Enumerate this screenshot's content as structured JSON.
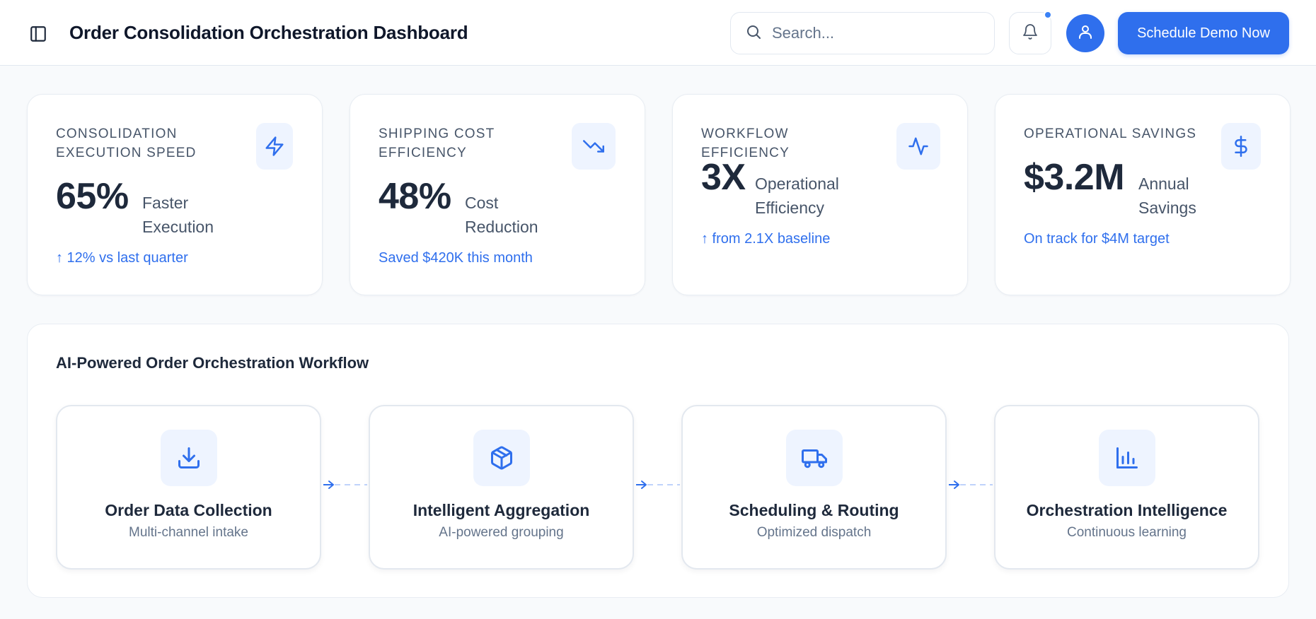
{
  "header": {
    "title": "Order Consolidation Orchestration Dashboard",
    "search_placeholder": "Search...",
    "demo_button": "Schedule Demo Now",
    "notification_dot": true
  },
  "kpis": [
    {
      "label": "Consolidation Execution Speed",
      "value": "65%",
      "caption": "Faster Execution",
      "trend": "↑ 12% vs last quarter",
      "icon": "lightning-icon"
    },
    {
      "label": "Shipping Cost Efficiency",
      "value": "48%",
      "caption": "Cost Reduction",
      "trend": "Saved $420K this month",
      "icon": "trending-down-icon"
    },
    {
      "label": "Workflow Efficiency",
      "value": "3X",
      "caption": "Operational Efficiency",
      "trend": "↑ from 2.1X baseline",
      "icon": "activity-icon"
    },
    {
      "label": "Operational Savings",
      "value": "$3.2M",
      "caption": "Annual Savings",
      "trend": "On track for $4M target",
      "icon": "dollar-icon"
    }
  ],
  "workflow": {
    "title": "AI-Powered Order Orchestration Workflow",
    "steps": [
      {
        "title": "Order Data Collection",
        "subtitle": "Multi-channel intake",
        "icon": "download-icon"
      },
      {
        "title": "Intelligent Aggregation",
        "subtitle": "AI-powered grouping",
        "icon": "package-icon"
      },
      {
        "title": "Scheduling & Routing",
        "subtitle": "Optimized dispatch",
        "icon": "truck-icon"
      },
      {
        "title": "Orchestration Intelligence",
        "subtitle": "Continuous learning",
        "icon": "bar-chart-icon"
      }
    ]
  },
  "colors": {
    "accent": "#2f6fed",
    "icon_bg": "#eef4ff",
    "text_dark": "#1e293b",
    "text_muted": "#64748b"
  }
}
